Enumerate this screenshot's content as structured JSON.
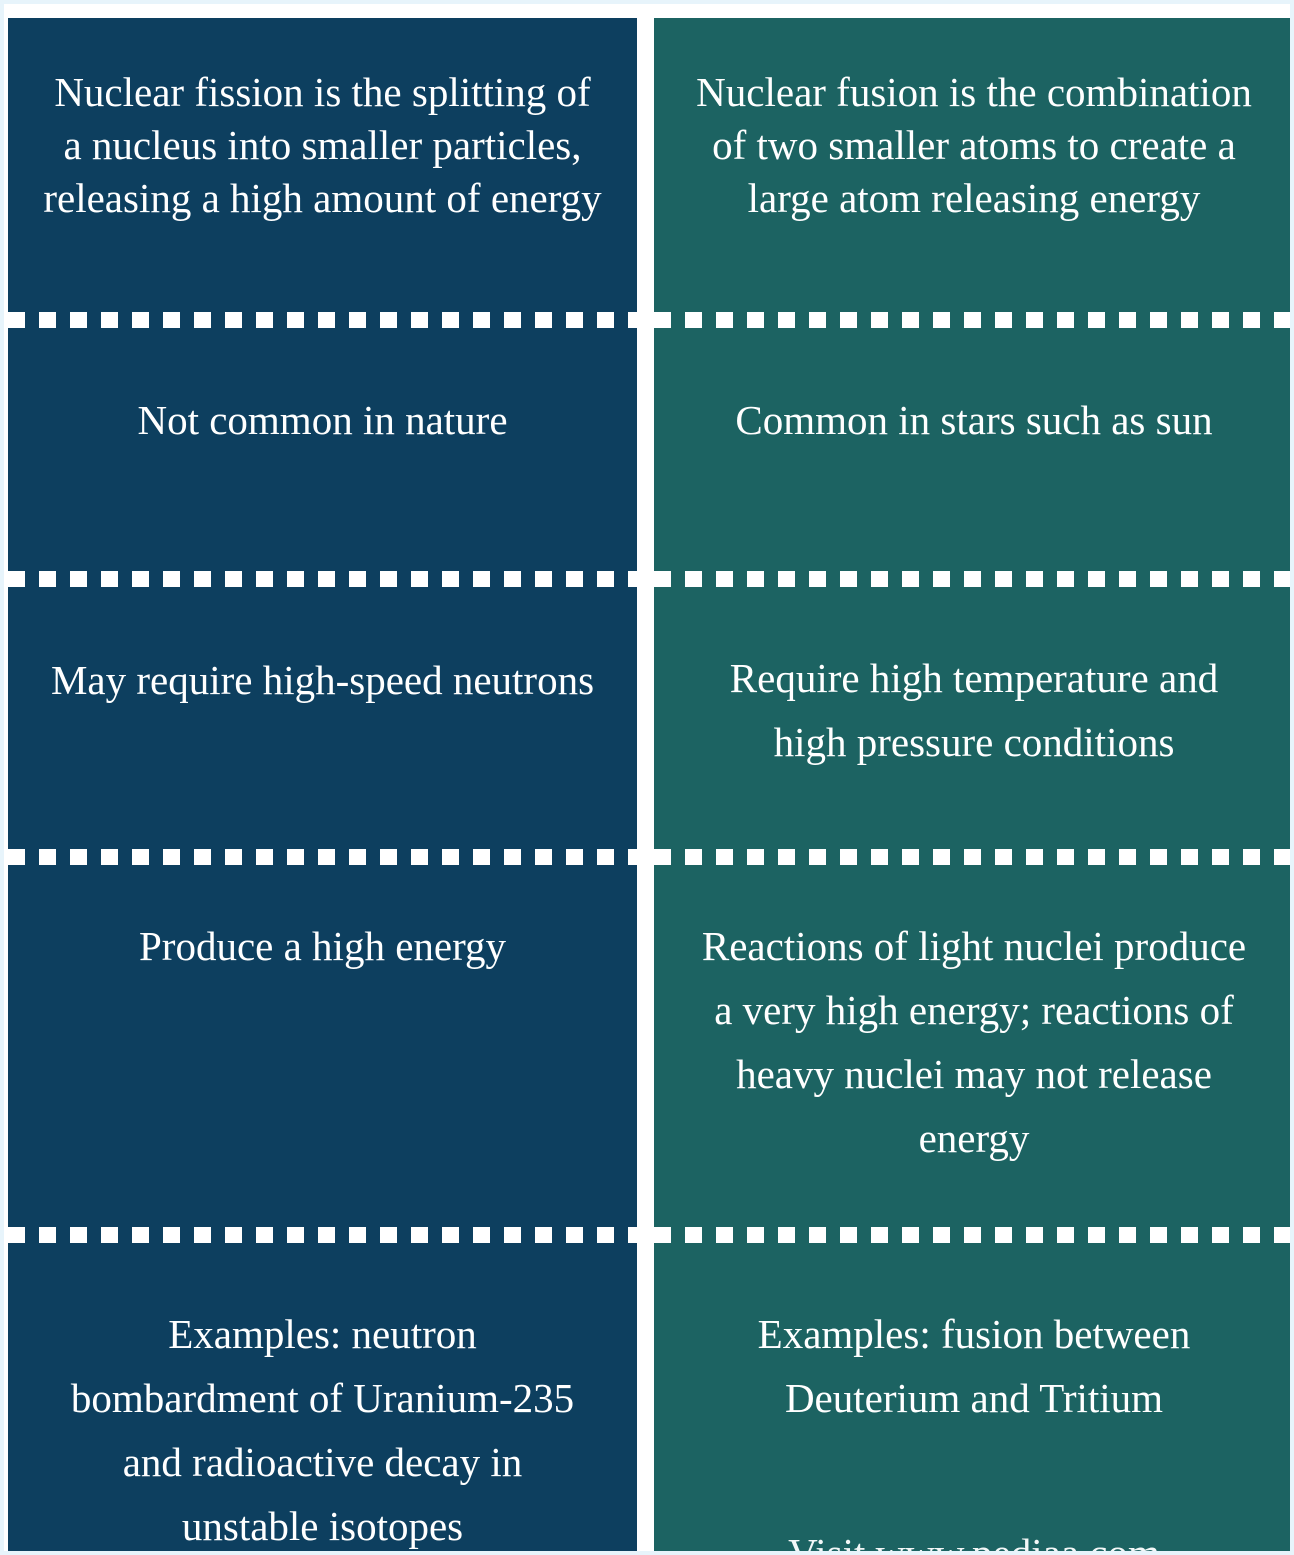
{
  "comparison": {
    "fission": {
      "definition": "Nuclear fission is the splitting of a nucleus into smaller particles, releasing a high amount of energy",
      "occurrence": "Not common in nature",
      "conditions": "May require high-speed neutrons",
      "energy": "Produce a high energy",
      "examples": "Examples: neutron bombardment of Uranium-235 and radioactive decay in unstable isotopes"
    },
    "fusion": {
      "definition": "Nuclear fusion is the combination of two smaller atoms to create a large atom releasing energy",
      "occurrence": "Common in stars such as sun",
      "conditions": "Require high temperature and high pressure conditions",
      "energy": "Reactions of light nuclei produce a very high energy; reactions of heavy nuclei may not release energy",
      "examples": "Examples: fusion between Deuterium and Tritium"
    }
  },
  "footer_partial_text": "Visit www.pediaa.com",
  "colors": {
    "fission_bg": "#0d3f5f",
    "fusion_bg": "#1c6362",
    "divider": "#ffffff",
    "border": "#e7f4fb"
  }
}
